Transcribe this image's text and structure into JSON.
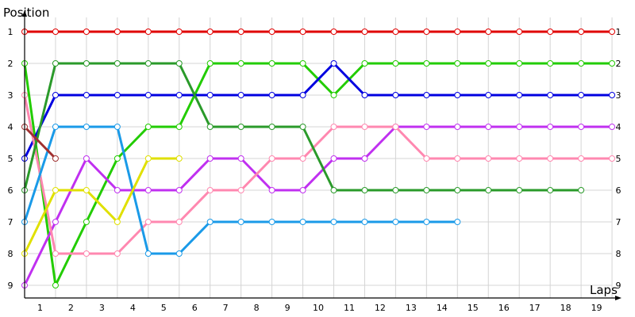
{
  "chart_data": {
    "type": "line",
    "xlabel": "Laps",
    "ylabel": "Position",
    "x_tick_labels": [
      "1",
      "2",
      "3",
      "4",
      "5",
      "6",
      "7",
      "8",
      "9",
      "10",
      "11",
      "12",
      "13",
      "14",
      "15",
      "16",
      "17",
      "18",
      "19"
    ],
    "y_tick_labels": [
      "1",
      "2",
      "3",
      "4",
      "5",
      "6",
      "7",
      "8",
      "9"
    ],
    "xlim": [
      0,
      19
    ],
    "ylim": [
      1,
      9
    ],
    "y_inverted": true,
    "grid": true,
    "series": [
      {
        "color": "#e00000",
        "values": [
          1,
          1,
          1,
          1,
          1,
          1,
          1,
          1,
          1,
          1,
          1,
          1,
          1,
          1,
          1,
          1,
          1,
          1,
          1,
          1
        ]
      },
      {
        "color": "#22cc00",
        "values": [
          2,
          9,
          7,
          5,
          4,
          4,
          2,
          2,
          2,
          2,
          3,
          2,
          2,
          2,
          2,
          2,
          2,
          2,
          2,
          2
        ]
      },
      {
        "color": "#0000e0",
        "values": [
          5,
          3,
          3,
          3,
          3,
          3,
          3,
          3,
          3,
          3,
          2,
          3,
          3,
          3,
          3,
          3,
          3,
          3,
          3,
          3
        ]
      },
      {
        "color": "#c030f0",
        "values": [
          9,
          7,
          5,
          6,
          6,
          6,
          5,
          5,
          6,
          6,
          5,
          5,
          4,
          4,
          4,
          4,
          4,
          4,
          4,
          4
        ]
      },
      {
        "color": "#ff88b0",
        "values": [
          3,
          8,
          8,
          8,
          7,
          7,
          6,
          6,
          5,
          5,
          4,
          4,
          4,
          5,
          5,
          5,
          5,
          5,
          5,
          5
        ]
      },
      {
        "color": "#2a9a2a",
        "values": [
          6,
          2,
          2,
          2,
          2,
          2,
          4,
          4,
          4,
          4,
          6,
          6,
          6,
          6,
          6,
          6,
          6,
          6,
          6
        ]
      },
      {
        "color": "#1a9ae8",
        "values": [
          7,
          4,
          4,
          4,
          8,
          8,
          7,
          7,
          7,
          7,
          7,
          7,
          7,
          7,
          7
        ]
      },
      {
        "color": "#e0e000",
        "values": [
          8,
          6,
          6,
          7,
          5,
          5
        ]
      },
      {
        "color": "#a03030",
        "values": [
          4,
          5
        ]
      }
    ]
  }
}
